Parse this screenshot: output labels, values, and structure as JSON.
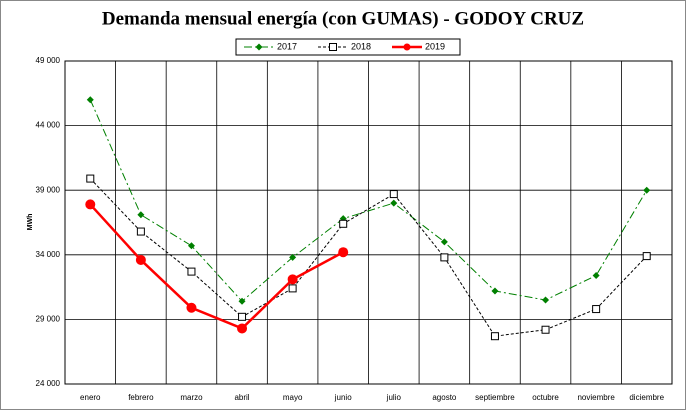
{
  "chart_data": {
    "type": "line",
    "title": "Demanda mensual energía (con GUMAS) - GODOY CRUZ",
    "y_label": "MWh",
    "categories": [
      "enero",
      "febrero",
      "marzo",
      "abril",
      "mayo",
      "junio",
      "julio",
      "agosto",
      "septiembre",
      "octubre",
      "noviembre",
      "diciembre"
    ],
    "series": [
      {
        "name": "2017",
        "color": "#008000",
        "dash": "8 3 2 3",
        "marker": "diamond",
        "values": [
          46000,
          37100,
          34700,
          30400,
          33800,
          36800,
          38000,
          35000,
          31200,
          30500,
          32400,
          39000
        ]
      },
      {
        "name": "2018",
        "color": "#000000",
        "dash": "3 2",
        "marker": "square",
        "values": [
          39900,
          35800,
          32700,
          29200,
          31400,
          36400,
          38700,
          33800,
          27700,
          28200,
          29800,
          33900
        ]
      },
      {
        "name": "2019",
        "color": "#ff0000",
        "dash": "",
        "marker": "circle",
        "values": [
          37900,
          33600,
          29900,
          28300,
          32100,
          34200,
          null,
          null,
          null,
          null,
          null,
          null
        ]
      }
    ],
    "ylim": [
      24000,
      49000
    ],
    "yticks": [
      {
        "value": 24000,
        "label": "24 000"
      },
      {
        "value": 29000,
        "label": "29 000"
      },
      {
        "value": 34000,
        "label": "34 000"
      },
      {
        "value": 39000,
        "label": "39 000"
      },
      {
        "value": 44000,
        "label": "44 000"
      },
      {
        "value": 49000,
        "label": "49 000"
      }
    ],
    "grid": true,
    "legend": "top"
  }
}
